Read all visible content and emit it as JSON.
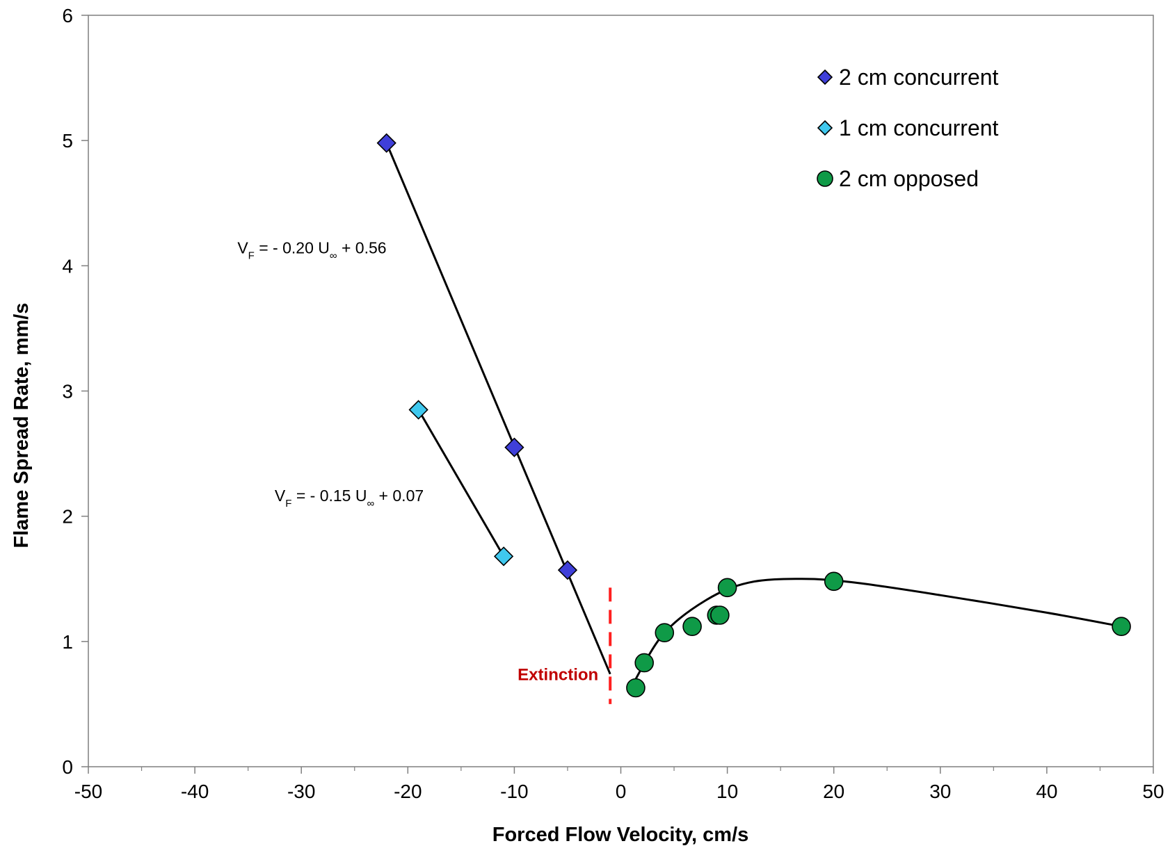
{
  "chart_data": {
    "type": "scatter",
    "xlabel": "Forced Flow Velocity, cm/s",
    "ylabel": "Flame Spread Rate, mm/s",
    "xlim": [
      -50,
      50
    ],
    "ylim": [
      0,
      6
    ],
    "x_ticks": [
      "-50",
      "-40",
      "-30",
      "-20",
      "-10",
      "0",
      "10",
      "20",
      "30",
      "40",
      "50"
    ],
    "y_ticks": [
      "0",
      "1",
      "2",
      "3",
      "4",
      "5",
      "6"
    ],
    "grid": false,
    "legend_position": "top-right",
    "series": [
      {
        "name": "2 cm concurrent",
        "marker": "diamond",
        "color": "#3f3fd9",
        "points": [
          [
            -22,
            4.98
          ],
          [
            -10,
            2.55
          ],
          [
            -5,
            1.57
          ]
        ]
      },
      {
        "name": "1 cm  concurrent",
        "marker": "diamond",
        "color": "#3fc8ee",
        "points": [
          [
            -19,
            2.85
          ],
          [
            -11,
            1.68
          ]
        ]
      },
      {
        "name": "2 cm opposed",
        "marker": "circle",
        "color": "#0f9a47",
        "points": [
          [
            1.4,
            0.63
          ],
          [
            2.2,
            0.83
          ],
          [
            4.1,
            1.07
          ],
          [
            6.7,
            1.12
          ],
          [
            9.0,
            1.21
          ],
          [
            9.3,
            1.21
          ],
          [
            10.0,
            1.43
          ],
          [
            20.0,
            1.48
          ],
          [
            47.0,
            1.12
          ]
        ]
      }
    ],
    "fit_lines": [
      {
        "equation": "V_F = - 0.20 U_∞ + 0.56",
        "points": [
          [
            -22,
            4.98
          ],
          [
            -1.0,
            0.74
          ]
        ]
      },
      {
        "equation": "V_F = - 0.15 U_∞ + 0.07",
        "points": [
          [
            -19,
            2.85
          ],
          [
            -11,
            1.68
          ]
        ]
      },
      {
        "curve": "smooth",
        "points": [
          [
            1.2,
            0.67
          ],
          [
            4,
            1.06
          ],
          [
            8,
            1.33
          ],
          [
            12,
            1.47
          ],
          [
            17,
            1.5
          ],
          [
            22,
            1.47
          ],
          [
            30,
            1.37
          ],
          [
            40,
            1.23
          ],
          [
            47,
            1.12
          ]
        ]
      }
    ],
    "annotations": {
      "eq1": {
        "base1": "V",
        "sub1": "F",
        "mid": " = - 0.20 U",
        "sub2": "∞",
        "tail": " + 0.56",
        "at": [
          -36,
          4.1
        ]
      },
      "eq2": {
        "base1": "V",
        "sub1": "F",
        "mid": " = - 0.15 U",
        "sub2": "∞",
        "tail": " + 0.07",
        "at": [
          -32.5,
          2.12
        ]
      },
      "extinction": {
        "label": "Extinction",
        "x": -1.0,
        "y_range": [
          0.5,
          1.43
        ],
        "color": "#ff2020",
        "label_color": "#c00000"
      }
    }
  }
}
